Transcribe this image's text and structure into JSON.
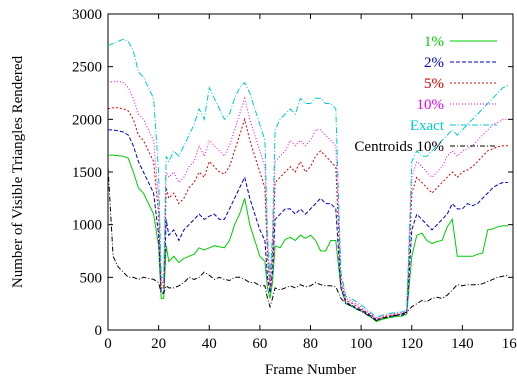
{
  "chart_data": {
    "type": "line",
    "title": "",
    "xlabel": "Frame Number",
    "ylabel": "Number of Visible Triangles Rendered",
    "xlim": [
      0,
      160
    ],
    "ylim": [
      0,
      3000
    ],
    "xticks": [
      "0",
      "20",
      "40",
      "60",
      "80",
      "100",
      "120",
      "140",
      "160"
    ],
    "yticks": [
      "0",
      "500",
      "1000",
      "1500",
      "2000",
      "2500",
      "3000"
    ],
    "grid": false,
    "legend_position": "top-right",
    "x": [
      0,
      2,
      4,
      6,
      8,
      10,
      12,
      14,
      16,
      18,
      20,
      21,
      22,
      23,
      24,
      26,
      28,
      30,
      32,
      34,
      36,
      38,
      40,
      42,
      44,
      46,
      48,
      50,
      52,
      54,
      56,
      58,
      60,
      62,
      63,
      64,
      65,
      66,
      68,
      70,
      72,
      74,
      76,
      78,
      80,
      82,
      84,
      86,
      88,
      90,
      92,
      94,
      96,
      98,
      100,
      102,
      104,
      106,
      108,
      110,
      112,
      114,
      116,
      118,
      120,
      122,
      124,
      126,
      128,
      130,
      132,
      134,
      136,
      138,
      140,
      142,
      144,
      146,
      148,
      150,
      152,
      154,
      156,
      158
    ],
    "series": [
      {
        "name": "1%",
        "color": "#00cc00",
        "dash": "solid",
        "values": [
          1660,
          1660,
          1655,
          1650,
          1630,
          1500,
          1350,
          1300,
          1200,
          1100,
          800,
          300,
          300,
          800,
          650,
          700,
          640,
          680,
          700,
          720,
          780,
          760,
          780,
          800,
          790,
          780,
          850,
          1000,
          1100,
          1250,
          1000,
          850,
          700,
          650,
          400,
          300,
          450,
          800,
          780,
          860,
          880,
          850,
          900,
          870,
          900,
          850,
          750,
          750,
          850,
          850,
          400,
          250,
          230,
          200,
          180,
          150,
          120,
          80,
          100,
          110,
          120,
          130,
          130,
          150,
          700,
          900,
          920,
          850,
          820,
          840,
          850,
          980,
          1050,
          700,
          700,
          700,
          700,
          720,
          730,
          950,
          960,
          980,
          990,
          990
        ]
      },
      {
        "name": "2%",
        "color": "#0000cc",
        "dash": "4,2",
        "values": [
          1900,
          1900,
          1890,
          1880,
          1850,
          1750,
          1600,
          1500,
          1400,
          1300,
          900,
          350,
          350,
          1050,
          900,
          950,
          850,
          950,
          1000,
          1050,
          1100,
          1050,
          1080,
          1100,
          1050,
          1050,
          1150,
          1250,
          1350,
          1450,
          1250,
          1100,
          950,
          850,
          500,
          350,
          550,
          1050,
          1100,
          1150,
          1150,
          1100,
          1150,
          1100,
          1150,
          1200,
          1250,
          1200,
          1200,
          1150,
          400,
          260,
          240,
          210,
          190,
          160,
          130,
          90,
          110,
          120,
          130,
          140,
          140,
          160,
          950,
          1100,
          1050,
          1000,
          950,
          1000,
          1050,
          1100,
          1200,
          1150,
          1150,
          1200,
          1180,
          1200,
          1250,
          1300,
          1350,
          1380,
          1400,
          1400
        ]
      },
      {
        "name": "5%",
        "color": "#dd0000",
        "dash": "2,2",
        "values": [
          2100,
          2110,
          2110,
          2100,
          2080,
          2000,
          1850,
          1800,
          1700,
          1600,
          1100,
          400,
          400,
          1350,
          1250,
          1300,
          1200,
          1250,
          1350,
          1400,
          1500,
          1450,
          1600,
          1550,
          1500,
          1480,
          1550,
          1700,
          1850,
          2000,
          1800,
          1650,
          1500,
          1350,
          700,
          400,
          700,
          1400,
          1450,
          1500,
          1550,
          1500,
          1600,
          1500,
          1550,
          1650,
          1700,
          1650,
          1600,
          1550,
          450,
          280,
          260,
          230,
          200,
          170,
          140,
          100,
          120,
          130,
          140,
          150,
          150,
          170,
          1300,
          1450,
          1400,
          1350,
          1300,
          1350,
          1400,
          1450,
          1500,
          1450,
          1500,
          1520,
          1550,
          1600,
          1650,
          1700,
          1720,
          1740,
          1750,
          1750
        ]
      },
      {
        "name": "10%",
        "color": "#ee00ee",
        "dash": "1,2",
        "values": [
          2350,
          2360,
          2360,
          2350,
          2300,
          2200,
          2050,
          2000,
          1900,
          1800,
          1250,
          450,
          450,
          1500,
          1450,
          1500,
          1400,
          1450,
          1550,
          1600,
          1750,
          1650,
          1800,
          1750,
          1700,
          1650,
          1750,
          1900,
          2050,
          2200,
          2000,
          1850,
          1700,
          1550,
          800,
          450,
          800,
          1600,
          1650,
          1700,
          1800,
          1750,
          1800,
          1750,
          1800,
          1900,
          1900,
          1850,
          1800,
          1750,
          500,
          300,
          280,
          250,
          220,
          180,
          150,
          110,
          130,
          140,
          150,
          160,
          160,
          180,
          1450,
          1600,
          1550,
          1500,
          1450,
          1500,
          1550,
          1650,
          1700,
          1650,
          1700,
          1720,
          1750,
          1800,
          1850,
          1900,
          1950,
          1970,
          2000,
          2000
        ]
      },
      {
        "name": "Exact",
        "color": "#00cccc",
        "dash": "6,2,1,2",
        "values": [
          2700,
          2720,
          2740,
          2760,
          2740,
          2650,
          2450,
          2400,
          2300,
          2200,
          1500,
          500,
          500,
          1650,
          1600,
          1700,
          1650,
          1750,
          1850,
          1950,
          2100,
          2000,
          2300,
          2200,
          2100,
          2000,
          2050,
          2200,
          2300,
          2350,
          2250,
          2100,
          1950,
          1800,
          900,
          500,
          900,
          1900,
          2000,
          2050,
          2100,
          2050,
          2200,
          2150,
          2150,
          2200,
          2200,
          2150,
          2150,
          2100,
          550,
          320,
          300,
          270,
          240,
          200,
          160,
          120,
          140,
          150,
          160,
          170,
          170,
          190,
          1600,
          1700,
          1650,
          1650,
          1700,
          1750,
          1800,
          1850,
          1900,
          1850,
          1900,
          1950,
          2000,
          2050,
          2100,
          2150,
          2200,
          2250,
          2300,
          2320
        ]
      },
      {
        "name": "Centroids 10%",
        "color": "#000000",
        "dash": "5,2,1,2",
        "values": [
          1550,
          700,
          600,
          550,
          500,
          500,
          480,
          500,
          490,
          480,
          450,
          350,
          350,
          420,
          400,
          400,
          420,
          450,
          500,
          480,
          500,
          550,
          520,
          480,
          500,
          480,
          470,
          500,
          500,
          480,
          450,
          450,
          420,
          420,
          300,
          220,
          300,
          400,
          380,
          400,
          420,
          400,
          430,
          410,
          420,
          450,
          430,
          420,
          420,
          410,
          300,
          250,
          230,
          200,
          180,
          150,
          120,
          90,
          110,
          120,
          130,
          140,
          150,
          170,
          220,
          250,
          280,
          270,
          300,
          310,
          300,
          330,
          380,
          430,
          420,
          430,
          430,
          430,
          440,
          460,
          480,
          500,
          510,
          520
        ]
      }
    ]
  }
}
